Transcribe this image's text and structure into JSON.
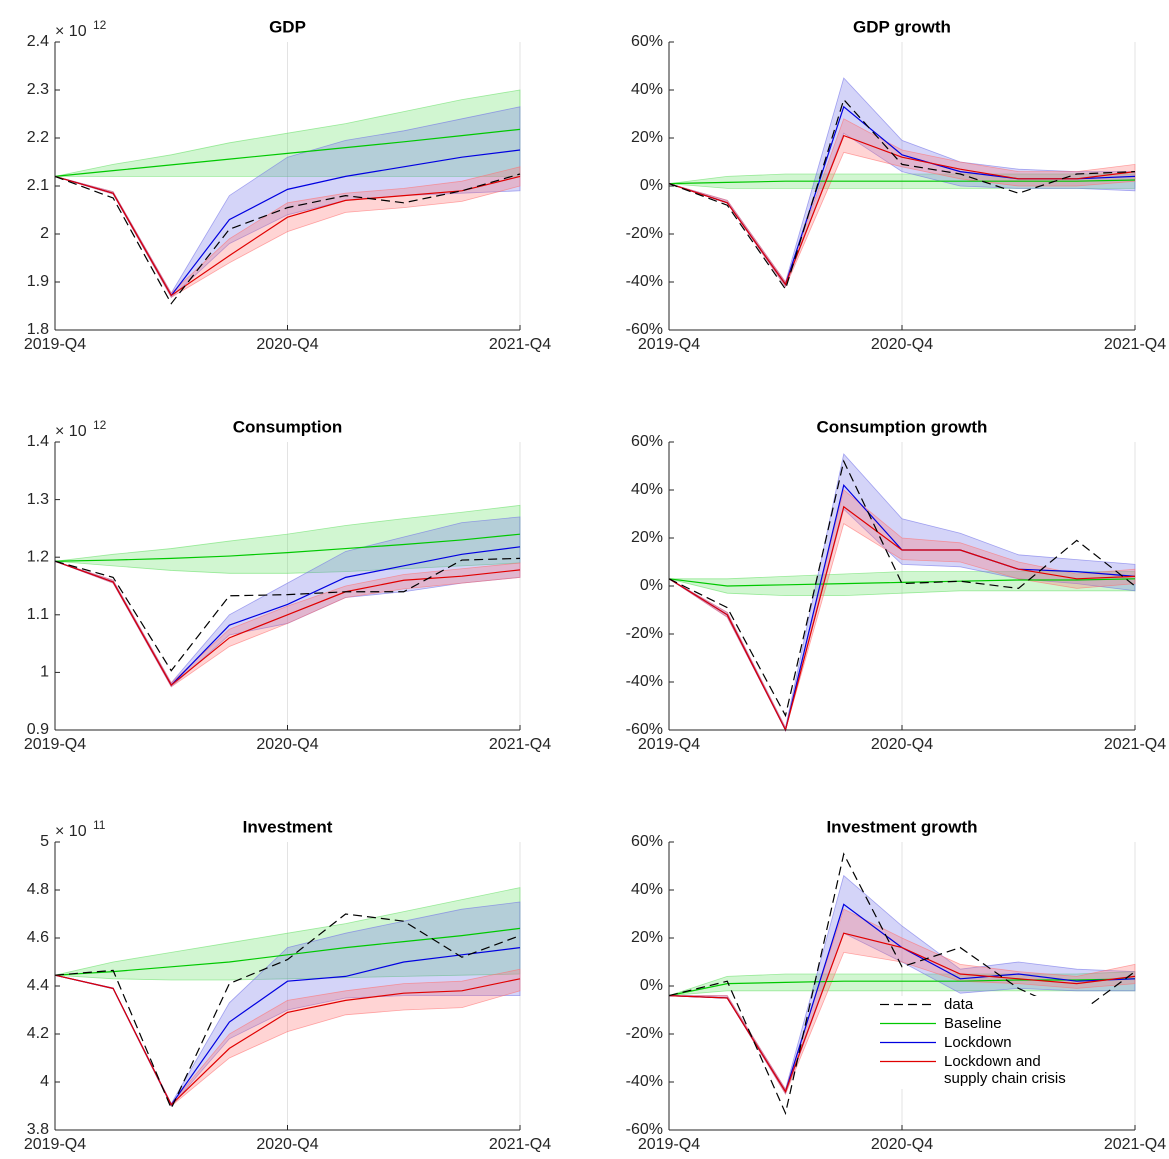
{
  "chart_data": [
    {
      "type": "line",
      "title": "GDP",
      "yscale_label": {
        "base": "× 10",
        "exponent": "12"
      },
      "categories": [
        "2019-Q4",
        null,
        null,
        null,
        "2020-Q4",
        null,
        null,
        null,
        "2021-Q4"
      ],
      "ylim": [
        1.8,
        2.4
      ],
      "yticks": [
        1.8,
        1.9,
        2,
        2.1,
        2.2,
        2.3,
        2.4
      ],
      "xgrid": true,
      "series": [
        {
          "color": "#000000",
          "dashed": true,
          "values": [
            2.12,
            2.075,
            1.855,
            2.01,
            2.055,
            2.08,
            2.065,
            2.09,
            2.125
          ]
        },
        {
          "color": "#00c800",
          "band_color": "#66e066",
          "values": [
            2.12,
            2.132,
            2.144,
            2.156,
            2.168,
            2.18,
            2.192,
            2.205,
            2.218
          ],
          "lower": [
            2.12,
            2.12,
            2.12,
            2.12,
            2.12,
            2.12,
            2.12,
            2.12,
            2.12
          ],
          "upper": [
            2.12,
            2.145,
            2.165,
            2.19,
            2.21,
            2.23,
            2.255,
            2.28,
            2.3
          ]
        },
        {
          "color": "#0000e0",
          "band_color": "#6f6fe8",
          "values": [
            2.12,
            2.085,
            1.872,
            2.03,
            2.093,
            2.12,
            2.14,
            2.16,
            2.175
          ],
          "lower": [
            2.12,
            2.083,
            1.868,
            1.98,
            2.04,
            2.07,
            2.08,
            2.085,
            2.09
          ],
          "upper": [
            2.12,
            2.088,
            1.877,
            2.08,
            2.16,
            2.195,
            2.215,
            2.24,
            2.265
          ]
        },
        {
          "color": "#e00000",
          "band_color": "#ff7070",
          "values": [
            2.12,
            2.085,
            1.872,
            1.955,
            2.035,
            2.07,
            2.08,
            2.09,
            2.12
          ],
          "lower": [
            2.12,
            2.083,
            1.868,
            1.94,
            2.005,
            2.045,
            2.055,
            2.068,
            2.1
          ],
          "upper": [
            2.12,
            2.088,
            1.877,
            1.99,
            2.065,
            2.085,
            2.095,
            2.11,
            2.14
          ]
        }
      ]
    },
    {
      "type": "line",
      "title": "GDP growth",
      "categories": [
        "2019-Q4",
        null,
        null,
        null,
        "2020-Q4",
        null,
        null,
        null,
        "2021-Q4"
      ],
      "ylim": [
        -60,
        60
      ],
      "yticks": [
        {
          "value": -60,
          "label": "-60%"
        },
        {
          "value": -40,
          "label": "-40%"
        },
        {
          "value": -20,
          "label": "-20%"
        },
        {
          "value": 0,
          "label": "0%"
        },
        {
          "value": 20,
          "label": "20%"
        },
        {
          "value": 40,
          "label": "40%"
        },
        {
          "value": 60,
          "label": "60%"
        }
      ],
      "xgrid": true,
      "series": [
        {
          "color": "#000000",
          "dashed": true,
          "values": [
            1,
            -8,
            -43,
            36,
            9,
            5,
            -3,
            5,
            6
          ]
        },
        {
          "color": "#00c800",
          "band_color": "#66e066",
          "values": [
            1,
            1.5,
            2,
            2,
            2,
            2,
            2,
            2,
            2.5
          ],
          "lower": [
            1,
            -1,
            -1,
            -1,
            -1,
            -1,
            -1,
            -1,
            -1
          ],
          "upper": [
            1,
            4,
            5,
            5,
            5,
            5,
            5,
            5,
            5
          ]
        },
        {
          "color": "#0000e0",
          "band_color": "#6f6fe8",
          "values": [
            1,
            -7,
            -41,
            33,
            13,
            6,
            3,
            3,
            4
          ],
          "lower": [
            1,
            -7,
            -42,
            22,
            6,
            0,
            -1,
            -1,
            -2
          ],
          "upper": [
            1,
            -6,
            -40,
            45,
            19,
            10,
            7,
            6,
            6
          ]
        },
        {
          "color": "#e00000",
          "band_color": "#ff7070",
          "values": [
            1,
            -7,
            -41,
            21,
            12,
            7,
            3,
            3,
            6
          ],
          "lower": [
            1,
            -7,
            -42,
            14,
            8,
            3,
            0,
            0,
            2
          ],
          "upper": [
            1,
            -6,
            -40,
            28,
            15,
            10,
            6,
            6,
            9
          ]
        }
      ]
    },
    {
      "type": "line",
      "title": "Consumption",
      "yscale_label": {
        "base": "× 10",
        "exponent": "12"
      },
      "categories": [
        "2019-Q4",
        null,
        null,
        null,
        "2020-Q4",
        null,
        null,
        null,
        "2021-Q4"
      ],
      "ylim": [
        0.9,
        1.4
      ],
      "yticks": [
        0.9,
        1,
        1.1,
        1.2,
        1.3,
        1.4
      ],
      "xgrid": true,
      "series": [
        {
          "color": "#000000",
          "dashed": true,
          "values": [
            1.193,
            1.165,
            1.003,
            1.133,
            1.135,
            1.14,
            1.14,
            1.195,
            1.198
          ]
        },
        {
          "color": "#00c800",
          "band_color": "#66e066",
          "values": [
            1.193,
            1.195,
            1.198,
            1.202,
            1.208,
            1.215,
            1.222,
            1.23,
            1.24
          ],
          "lower": [
            1.193,
            1.185,
            1.177,
            1.172,
            1.172,
            1.175,
            1.18,
            1.185,
            1.19
          ],
          "upper": [
            1.193,
            1.205,
            1.215,
            1.228,
            1.24,
            1.255,
            1.267,
            1.278,
            1.29
          ]
        },
        {
          "color": "#0000e0",
          "band_color": "#6f6fe8",
          "values": [
            1.193,
            1.157,
            0.978,
            1.082,
            1.118,
            1.165,
            1.185,
            1.205,
            1.218
          ],
          "lower": [
            1.193,
            1.155,
            0.975,
            1.065,
            1.085,
            1.13,
            1.14,
            1.155,
            1.165
          ],
          "upper": [
            1.193,
            1.16,
            0.982,
            1.1,
            1.155,
            1.21,
            1.235,
            1.26,
            1.27
          ]
        },
        {
          "color": "#e00000",
          "band_color": "#ff7070",
          "values": [
            1.193,
            1.157,
            0.978,
            1.06,
            1.1,
            1.14,
            1.16,
            1.167,
            1.178
          ],
          "lower": [
            1.193,
            1.155,
            0.975,
            1.045,
            1.085,
            1.13,
            1.145,
            1.155,
            1.165
          ],
          "upper": [
            1.193,
            1.16,
            0.982,
            1.075,
            1.115,
            1.15,
            1.17,
            1.18,
            1.19
          ]
        }
      ]
    },
    {
      "type": "line",
      "title": "Consumption growth",
      "categories": [
        "2019-Q4",
        null,
        null,
        null,
        "2020-Q4",
        null,
        null,
        null,
        "2021-Q4"
      ],
      "ylim": [
        -60,
        60
      ],
      "yticks": [
        {
          "value": -60,
          "label": "-60%"
        },
        {
          "value": -40,
          "label": "-40%"
        },
        {
          "value": -20,
          "label": "-20%"
        },
        {
          "value": 0,
          "label": "0%"
        },
        {
          "value": 20,
          "label": "20%"
        },
        {
          "value": 40,
          "label": "40%"
        },
        {
          "value": 60,
          "label": "60%"
        }
      ],
      "xgrid": true,
      "series": [
        {
          "color": "#000000",
          "dashed": true,
          "values": [
            3,
            -9,
            -54,
            52,
            1,
            2,
            -1,
            19,
            0
          ]
        },
        {
          "color": "#00c800",
          "band_color": "#66e066",
          "values": [
            3,
            0,
            0.5,
            1,
            1.5,
            2,
            2.5,
            2.5,
            3
          ],
          "lower": [
            3,
            -3,
            -4,
            -4,
            -3,
            -2,
            -2,
            -2,
            -2
          ],
          "upper": [
            3,
            3,
            4,
            5,
            6,
            6,
            6,
            6,
            6
          ]
        },
        {
          "color": "#0000e0",
          "band_color": "#6f6fe8",
          "values": [
            3,
            -12,
            -60,
            42,
            15,
            15,
            7,
            6,
            4
          ],
          "lower": [
            3,
            -13,
            -60,
            32,
            9,
            8,
            3,
            1,
            -2
          ],
          "upper": [
            3,
            -11,
            -59,
            55,
            28,
            22,
            13,
            11,
            9
          ]
        },
        {
          "color": "#e00000",
          "band_color": "#ff7070",
          "values": [
            3,
            -12,
            -60,
            33,
            15,
            15,
            7,
            3,
            4
          ],
          "lower": [
            3,
            -13,
            -60,
            26,
            11,
            10,
            3,
            -1,
            1
          ],
          "upper": [
            3,
            -11,
            -59,
            40,
            20,
            18,
            10,
            5,
            7
          ]
        }
      ]
    },
    {
      "type": "line",
      "title": "Investment",
      "yscale_label": {
        "base": "× 10",
        "exponent": "11"
      },
      "categories": [
        "2019-Q4",
        null,
        null,
        null,
        "2020-Q4",
        null,
        null,
        null,
        "2021-Q4"
      ],
      "ylim": [
        3.8,
        5
      ],
      "yticks": [
        3.8,
        4,
        4.2,
        4.4,
        4.6,
        4.8,
        5
      ],
      "xgrid": true,
      "series": [
        {
          "color": "#000000",
          "dashed": true,
          "values": [
            4.445,
            4.465,
            3.89,
            4.41,
            4.51,
            4.7,
            4.67,
            4.52,
            4.61
          ]
        },
        {
          "color": "#00c800",
          "band_color": "#66e066",
          "values": [
            4.445,
            4.46,
            4.48,
            4.5,
            4.53,
            4.56,
            4.585,
            4.61,
            4.64
          ],
          "lower": [
            4.445,
            4.43,
            4.425,
            4.425,
            4.43,
            4.435,
            4.44,
            4.445,
            4.45
          ],
          "upper": [
            4.445,
            4.5,
            4.54,
            4.58,
            4.62,
            4.66,
            4.71,
            4.76,
            4.81
          ]
        },
        {
          "color": "#0000e0",
          "band_color": "#6f6fe8",
          "values": [
            4.445,
            4.39,
            3.905,
            4.25,
            4.42,
            4.44,
            4.5,
            4.53,
            4.56
          ],
          "lower": [
            4.445,
            4.388,
            3.9,
            4.18,
            4.3,
            4.35,
            4.36,
            4.36,
            4.36
          ],
          "upper": [
            4.445,
            4.392,
            3.91,
            4.33,
            4.56,
            4.62,
            4.67,
            4.72,
            4.75
          ]
        },
        {
          "color": "#e00000",
          "band_color": "#ff7070",
          "values": [
            4.445,
            4.39,
            3.905,
            4.14,
            4.29,
            4.34,
            4.37,
            4.38,
            4.43
          ],
          "lower": [
            4.445,
            4.388,
            3.9,
            4.1,
            4.21,
            4.28,
            4.3,
            4.31,
            4.38
          ],
          "upper": [
            4.445,
            4.392,
            3.91,
            4.2,
            4.34,
            4.38,
            4.41,
            4.42,
            4.47
          ]
        }
      ]
    },
    {
      "type": "line",
      "title": "Investment growth",
      "legend": "southeast",
      "categories": [
        "2019-Q4",
        null,
        null,
        null,
        "2020-Q4",
        null,
        null,
        null,
        "2021-Q4"
      ],
      "ylim": [
        -60,
        60
      ],
      "yticks": [
        {
          "value": -60,
          "label": "-60%"
        },
        {
          "value": -40,
          "label": "-40%"
        },
        {
          "value": -20,
          "label": "-20%"
        },
        {
          "value": 0,
          "label": "0%"
        },
        {
          "value": 20,
          "label": "20%"
        },
        {
          "value": 40,
          "label": "40%"
        },
        {
          "value": 60,
          "label": "60%"
        }
      ],
      "xgrid": true,
      "series": [
        {
          "name": "data",
          "color": "#000000",
          "dashed": true,
          "values": [
            -4,
            2,
            -53,
            55,
            8,
            16,
            -1,
            -12,
            6
          ]
        },
        {
          "name": "Baseline",
          "color": "#00c800",
          "band_color": "#66e066",
          "values": [
            -4,
            1,
            1.5,
            2,
            2,
            2,
            2.5,
            2.5,
            3
          ],
          "lower": [
            -4,
            -2,
            -2,
            -2,
            -2,
            -2,
            -2,
            -2,
            -2
          ],
          "upper": [
            -4,
            4,
            5,
            5,
            5,
            5,
            5,
            5,
            6
          ]
        },
        {
          "name": "Lockdown",
          "color": "#0000e0",
          "band_color": "#6f6fe8",
          "values": [
            -4,
            -5,
            -44,
            34,
            16,
            3,
            5,
            2,
            3
          ],
          "lower": [
            -4,
            -5,
            -45,
            22,
            10,
            -3,
            -1,
            -2,
            -2
          ],
          "upper": [
            -4,
            -4,
            -43,
            46,
            25,
            7,
            10,
            7,
            6
          ]
        },
        {
          "name": "Lockdown and supply chain crisis",
          "color": "#e00000",
          "band_color": "#ff7070",
          "values": [
            -4,
            -5,
            -44,
            22,
            16,
            5,
            3,
            1,
            4
          ],
          "lower": [
            -4,
            -5,
            -45,
            14,
            10,
            2,
            1,
            -1,
            1
          ],
          "upper": [
            -4,
            -4,
            -43,
            32,
            20,
            9,
            6,
            4,
            9
          ]
        }
      ]
    }
  ]
}
